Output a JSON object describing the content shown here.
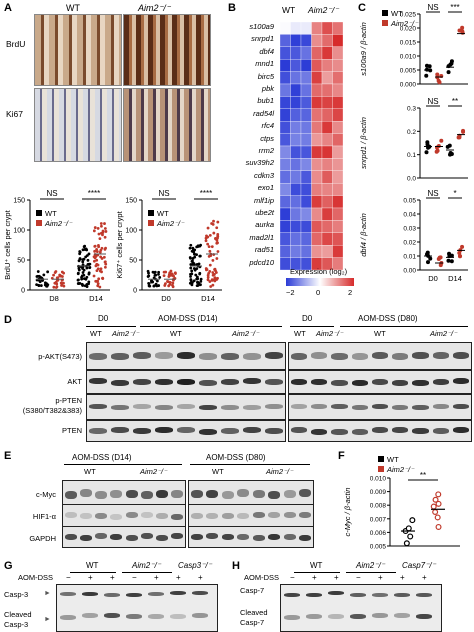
{
  "panels": {
    "A": {
      "label": "A",
      "col_wt": "WT",
      "col_ko": "Aim2⁻/⁻",
      "row1": "BrdU",
      "row2": "Ki67",
      "chart_data": [
        {
          "type": "scatter",
          "ylabel": "BrdU⁺ cells per crypt",
          "categories": [
            "D8",
            "D14"
          ],
          "ylim": [
            0,
            150
          ],
          "yticks": [
            0,
            50,
            100,
            150
          ],
          "series": [
            {
              "name": "WT",
              "color": "#000000"
            },
            {
              "name": "Aim2⁻/⁻",
              "color": "#c0392b"
            }
          ],
          "significance": [
            "NS",
            "****"
          ]
        },
        {
          "type": "scatter",
          "ylabel": "Ki67⁺ cells per crypt",
          "categories": [
            "D0",
            "D14"
          ],
          "ylim": [
            0,
            150
          ],
          "yticks": [
            0,
            50,
            100,
            150
          ],
          "series": [
            {
              "name": "WT",
              "color": "#000000"
            },
            {
              "name": "Aim2⁻/⁻",
              "color": "#c0392b"
            }
          ],
          "significance": [
            "NS",
            "****"
          ]
        }
      ],
      "legend_wt": "WT",
      "legend_ko": "Aim2⁻/⁻"
    },
    "B": {
      "label": "B",
      "col_wt": "WT",
      "col_ko": "Aim2⁻/⁻",
      "genes": [
        "s100a9",
        "snrpd1",
        "dbf4",
        "mnd1",
        "birc5",
        "pbk",
        "bub1",
        "rad54l",
        "rfc4",
        "ctps",
        "rrm2",
        "suv39h2",
        "cdkn3",
        "exo1",
        "mlf1ip",
        "ube2t",
        "aurka",
        "mad2l1",
        "rad51",
        "pdcd10"
      ],
      "colorbar_title": "Expression (log₂)",
      "colorbar_ticks": [
        "−2",
        "0",
        "2"
      ]
    },
    "C": {
      "label": "C",
      "legend_wt": "WT",
      "legend_ko": "Aim2⁻/⁻",
      "chart_data": [
        {
          "type": "scatter",
          "ylabel": "s100a9 / β-actin",
          "yticks": [
            "0.000",
            "0.005",
            "0.010",
            "0.015",
            "0.020",
            "0.025"
          ],
          "categories": [
            "D0",
            "D14"
          ],
          "significance": [
            "NS",
            "***"
          ]
        },
        {
          "type": "scatter",
          "ylabel": "snrpd1 / β-actin",
          "yticks": [
            "0.0",
            "0.1",
            "0.2",
            "0.3"
          ],
          "categories": [
            "D0",
            "D14"
          ],
          "significance": [
            "NS",
            "**"
          ]
        },
        {
          "type": "scatter",
          "ylabel": "dbf4 / β-actin",
          "yticks": [
            "0.00",
            "0.01",
            "0.02",
            "0.03",
            "0.04",
            "0.05"
          ],
          "categories": [
            "D0",
            "D14"
          ],
          "significance": [
            "NS",
            "*"
          ]
        }
      ],
      "xticks": [
        "D0",
        "D14"
      ]
    },
    "D": {
      "label": "D",
      "group1": "D0",
      "group2": "AOM-DSS (D14)",
      "group3": "D0",
      "group4": "AOM-DSS (D80)",
      "wt": "WT",
      "ko": "Aim2⁻/⁻",
      "rows": [
        "p-AKT(S473)",
        "AKT",
        "p-PTEN",
        "(S380/T382&383)",
        "PTEN"
      ]
    },
    "E": {
      "label": "E",
      "group1": "AOM-DSS (D14)",
      "group2": "AOM-DSS (D80)",
      "wt": "WT",
      "ko": "Aim2⁻/⁻",
      "rows": [
        "c-Myc",
        "HIF1-α",
        "GAPDH"
      ]
    },
    "F": {
      "label": "F",
      "legend_wt": "WT",
      "legend_ko": "Aim2⁻/⁻",
      "significance": "**",
      "chart_data": {
        "type": "scatter",
        "ylabel": "c-Myc / β-actin",
        "ylim": [
          0.005,
          0.01
        ],
        "yticks": [
          "0.005",
          "0.006",
          "0.007",
          "0.008",
          "0.009",
          "0.010"
        ],
        "series": [
          {
            "name": "WT",
            "mean": 0.0061,
            "values": [
              0.0052,
              0.0057,
              0.0061,
              0.0063,
              0.0069
            ]
          },
          {
            "name": "Aim2⁻/⁻",
            "mean": 0.0077,
            "values": [
              0.0064,
              0.0071,
              0.0075,
              0.0079,
              0.0081,
              0.0084,
              0.0088
            ]
          }
        ]
      }
    },
    "G": {
      "label": "G",
      "wt": "WT",
      "ko": "Aim2⁻/⁻",
      "ko2": "Casp3⁻/⁻",
      "treat": "AOM-DSS",
      "signs": [
        "−",
        "+",
        "+",
        "−",
        "+",
        "+",
        "+"
      ],
      "row1": "Casp-3",
      "row2a": "Cleaved",
      "row2b": "Casp-3"
    },
    "H": {
      "label": "H",
      "wt": "WT",
      "ko": "Aim2⁻/⁻",
      "ko2": "Casp7⁻/⁻",
      "treat": "AOM-DSS",
      "signs": [
        "−",
        "+",
        "+",
        "−",
        "+",
        "+",
        "+"
      ],
      "row1": "Casp-7",
      "row2a": "Cleaved",
      "row2b": "Casp-7"
    }
  }
}
